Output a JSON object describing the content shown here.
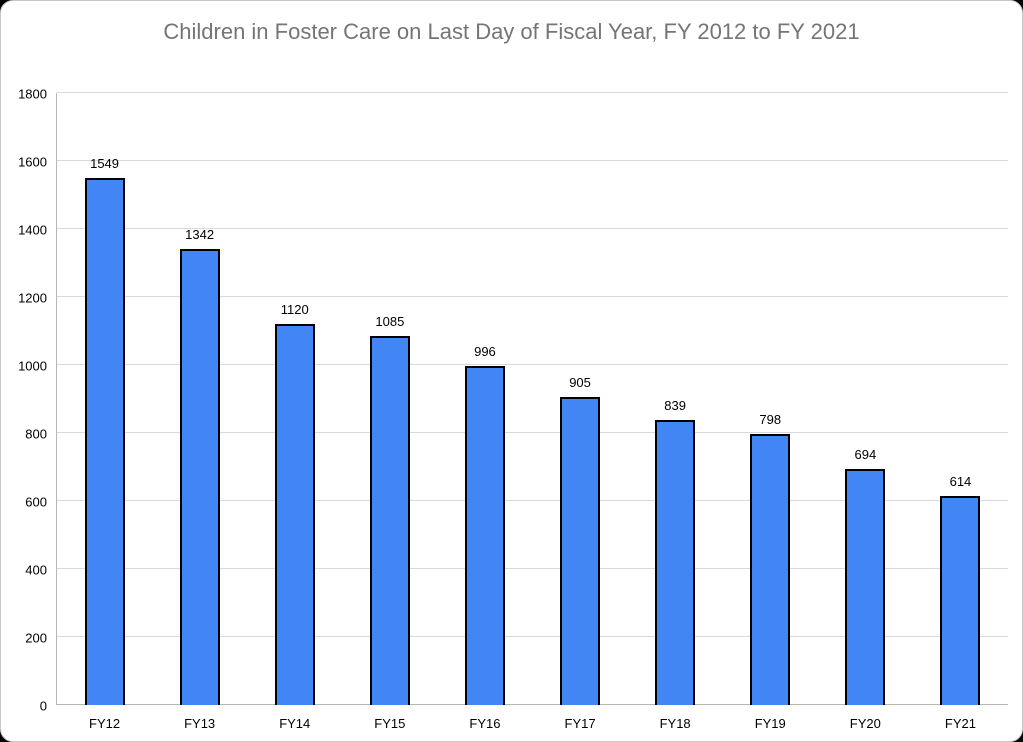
{
  "window": {
    "page_background": "#000000",
    "card_background": "#ffffff",
    "card_border_color": "#c8c8c8"
  },
  "chart_data": {
    "type": "bar",
    "title": "Children in Foster Care on Last Day of Fiscal Year, FY 2012 to FY 2021",
    "title_color": "#757575",
    "categories": [
      "FY12",
      "FY13",
      "FY14",
      "FY15",
      "FY16",
      "FY17",
      "FY18",
      "FY19",
      "FY20",
      "FY21"
    ],
    "values": [
      1549,
      1342,
      1120,
      1085,
      996,
      905,
      839,
      798,
      694,
      614
    ],
    "data_labels": true,
    "xlabel": "",
    "ylabel": "",
    "ylim": [
      0,
      1800
    ],
    "y_ticks": [
      0,
      200,
      400,
      600,
      800,
      1000,
      1200,
      1400,
      1600,
      1800
    ],
    "grid": true,
    "legend": "none",
    "bar_color": "#4285f4",
    "bar_border_color": "#000000",
    "gridline_color": "#d9d9d9",
    "axis_line_color": "#b7b7b7",
    "tick_label_color": "#000000"
  }
}
